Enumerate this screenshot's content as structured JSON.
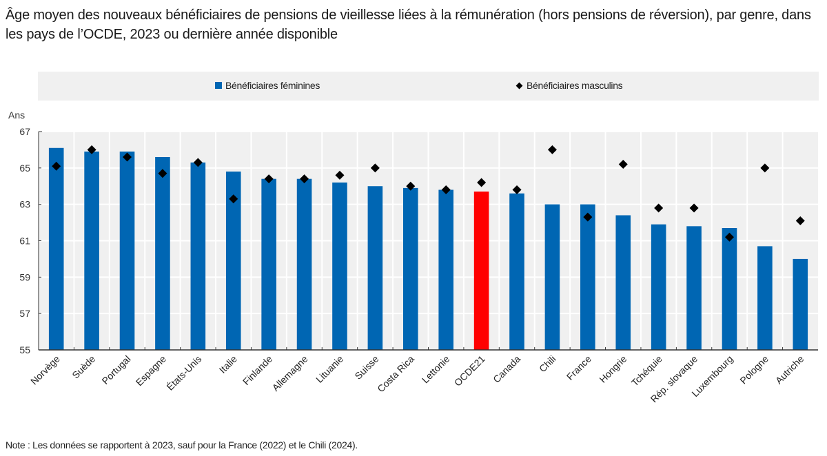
{
  "title": "Âge moyen des nouveaux bénéficiaires de pensions de vieillesse liées à la rémunération (hors pensions de réversion), par genre, dans les pays de l’OCDE, 2023 ou dernière année disponible",
  "legend": {
    "female": "Bénéficiaires féminines",
    "male": "Bénéficiaires masculins"
  },
  "note": "Note : Les données se rapportent à 2023, sauf pour la France (2022) et le Chili (2024).",
  "colors": {
    "female_bar": "#0066b3",
    "highlight_bar": "#ff0000",
    "male_marker": "#000000",
    "plot_background": "#f0f0f0",
    "gridline": "#ffffff"
  },
  "chart_data": {
    "type": "bar",
    "title": "Âge moyen des nouveaux bénéficiaires de pensions de vieillesse liées à la rémunération (hors pensions de réversion), par genre, dans les pays de l’OCDE, 2023 ou dernière année disponible",
    "xlabel": "",
    "ylabel": "Ans",
    "ylim": [
      55,
      67
    ],
    "yticks": [
      55,
      57,
      59,
      61,
      63,
      65,
      67
    ],
    "grid": true,
    "legend_position": "top",
    "highlight_category": "OCDE21",
    "categories": [
      "Norvège",
      "Suède",
      "Portugal",
      "Espagne",
      "États-Unis",
      "Italie",
      "Finlande",
      "Allemagne",
      "Lituanie",
      "Suisse",
      "Costa Rica",
      "Lettonie",
      "OCDE21",
      "Canada",
      "Chili",
      "France",
      "Hongrie",
      "Tchéquie",
      "Rép. slovaque",
      "Luxembourg",
      "Pologne",
      "Autriche"
    ],
    "series": [
      {
        "name": "Bénéficiaires féminines",
        "kind": "bar",
        "values": [
          66.1,
          65.9,
          65.9,
          65.6,
          65.3,
          64.8,
          64.4,
          64.4,
          64.2,
          64.0,
          63.9,
          63.8,
          63.7,
          63.6,
          63.0,
          63.0,
          62.4,
          61.9,
          61.8,
          61.7,
          60.7,
          60.0
        ]
      },
      {
        "name": "Bénéficiaires masculins",
        "kind": "marker",
        "values": [
          65.1,
          66.0,
          65.6,
          64.7,
          65.3,
          63.3,
          64.4,
          64.4,
          64.6,
          65.0,
          64.0,
          63.8,
          64.2,
          63.8,
          66.0,
          62.3,
          65.2,
          62.8,
          62.8,
          61.2,
          65.0,
          62.1
        ]
      }
    ]
  }
}
